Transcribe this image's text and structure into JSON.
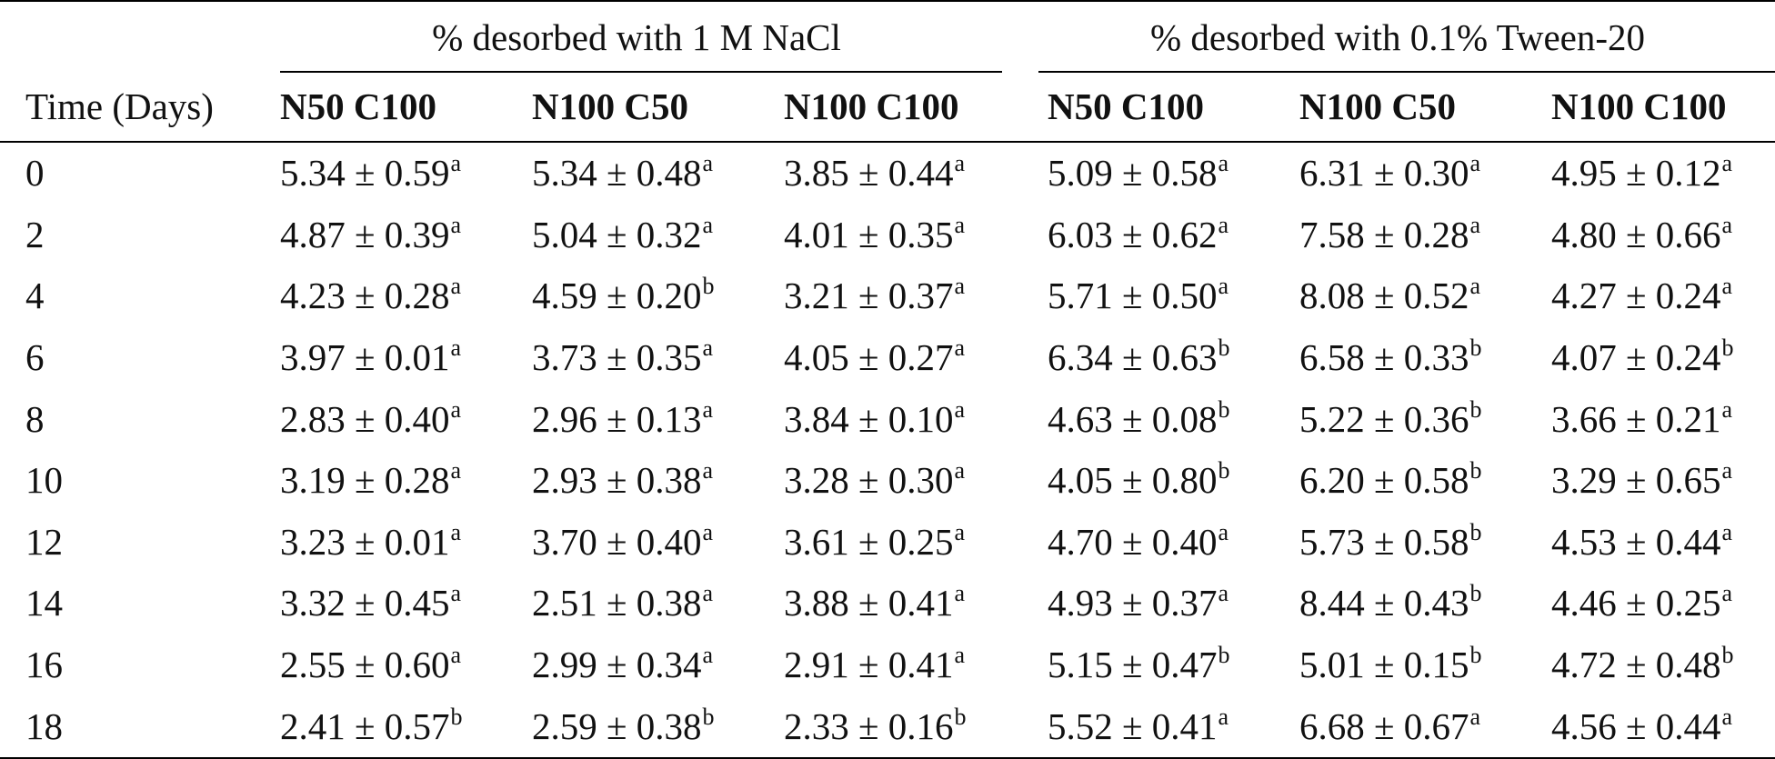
{
  "table": {
    "group_headers": [
      "% desorbed with 1 M NaCl",
      "% desorbed with 0.1% Tween-20"
    ],
    "first_column_header": "Time (Days)",
    "sub_headers": [
      "N50 C100",
      "N100 C50",
      "N100 C100",
      "N50 C100",
      "N100 C50",
      "N100 C100"
    ],
    "rows": [
      {
        "time": "0",
        "cells": [
          [
            "5.34 ± 0.59",
            "a"
          ],
          [
            "5.34 ± 0.48",
            "a"
          ],
          [
            "3.85 ± 0.44",
            "a"
          ],
          [
            "5.09 ± 0.58",
            "a"
          ],
          [
            "6.31 ± 0.30",
            "a"
          ],
          [
            "4.95 ± 0.12",
            "a"
          ]
        ]
      },
      {
        "time": "2",
        "cells": [
          [
            "4.87 ± 0.39",
            "a"
          ],
          [
            "5.04 ± 0.32",
            "a"
          ],
          [
            "4.01 ± 0.35",
            "a"
          ],
          [
            "6.03 ± 0.62",
            "a"
          ],
          [
            "7.58 ± 0.28",
            "a"
          ],
          [
            "4.80 ± 0.66",
            "a"
          ]
        ]
      },
      {
        "time": "4",
        "cells": [
          [
            "4.23 ± 0.28",
            "a"
          ],
          [
            "4.59 ± 0.20",
            "b"
          ],
          [
            "3.21 ± 0.37",
            "a"
          ],
          [
            "5.71 ± 0.50",
            "a"
          ],
          [
            "8.08 ± 0.52",
            "a"
          ],
          [
            "4.27 ± 0.24",
            "a"
          ]
        ]
      },
      {
        "time": "6",
        "cells": [
          [
            "3.97 ± 0.01",
            "a"
          ],
          [
            "3.73 ± 0.35",
            "a"
          ],
          [
            "4.05 ± 0.27",
            "a"
          ],
          [
            "6.34 ± 0.63",
            "b"
          ],
          [
            "6.58 ± 0.33",
            "b"
          ],
          [
            "4.07 ± 0.24",
            "b"
          ]
        ]
      },
      {
        "time": "8",
        "cells": [
          [
            "2.83 ± 0.40",
            "a"
          ],
          [
            "2.96 ± 0.13",
            "a"
          ],
          [
            "3.84 ± 0.10",
            "a"
          ],
          [
            "4.63 ± 0.08",
            "b"
          ],
          [
            "5.22 ± 0.36",
            "b"
          ],
          [
            "3.66 ± 0.21",
            "a"
          ]
        ]
      },
      {
        "time": "10",
        "cells": [
          [
            "3.19 ± 0.28",
            "a"
          ],
          [
            "2.93 ± 0.38",
            "a"
          ],
          [
            "3.28 ± 0.30",
            "a"
          ],
          [
            "4.05 ± 0.80",
            "b"
          ],
          [
            "6.20 ± 0.58",
            "b"
          ],
          [
            "3.29 ± 0.65",
            "a"
          ]
        ]
      },
      {
        "time": "12",
        "cells": [
          [
            "3.23 ± 0.01",
            "a"
          ],
          [
            "3.70 ± 0.40",
            "a"
          ],
          [
            "3.61 ± 0.25",
            "a"
          ],
          [
            "4.70 ± 0.40",
            "a"
          ],
          [
            "5.73 ± 0.58",
            "b"
          ],
          [
            "4.53 ± 0.44",
            "a"
          ]
        ]
      },
      {
        "time": "14",
        "cells": [
          [
            "3.32 ± 0.45",
            "a"
          ],
          [
            "2.51 ± 0.38",
            "a"
          ],
          [
            "3.88 ± 0.41",
            "a"
          ],
          [
            "4.93 ± 0.37",
            "a"
          ],
          [
            "8.44 ± 0.43",
            "b"
          ],
          [
            "4.46 ± 0.25",
            "a"
          ]
        ]
      },
      {
        "time": "16",
        "cells": [
          [
            "2.55 ± 0.60",
            "a"
          ],
          [
            "2.99 ± 0.34",
            "a"
          ],
          [
            "2.91 ± 0.41",
            "a"
          ],
          [
            "5.15 ± 0.47",
            "b"
          ],
          [
            "5.01 ± 0.15",
            "b"
          ],
          [
            "4.72 ± 0.48",
            "b"
          ]
        ]
      },
      {
        "time": "18",
        "cells": [
          [
            "2.41 ± 0.57",
            "b"
          ],
          [
            "2.59 ± 0.38",
            "b"
          ],
          [
            "2.33 ± 0.16",
            "b"
          ],
          [
            "5.52 ± 0.41",
            "a"
          ],
          [
            "6.68 ± 0.67",
            "a"
          ],
          [
            "4.56 ± 0.44",
            "a"
          ]
        ]
      }
    ]
  }
}
